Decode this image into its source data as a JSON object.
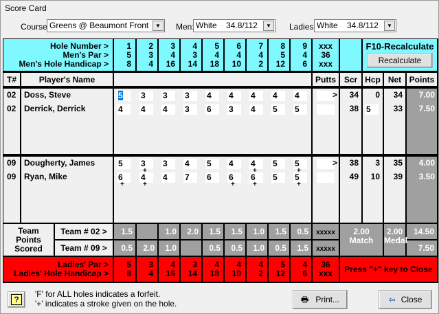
{
  "window": {
    "title": "Score Card"
  },
  "selectors": {
    "course_label": "Course:",
    "course_value": "Greens @ Beaumont Front",
    "men_label": "Men:",
    "men_value": "White    34.8/112",
    "ladies_label": "Ladies:",
    "ladies_value": "White    34.8/112"
  },
  "header": {
    "hole_number_label": "Hole Number >",
    "mens_par_label": "Men's Par >",
    "mens_hcp_label": "Men's Hole Handicap >",
    "holes": [
      "1",
      "2",
      "3",
      "4",
      "5",
      "6",
      "7",
      "8",
      "9"
    ],
    "mens_par": [
      "5",
      "3",
      "4",
      "3",
      "4",
      "4",
      "4",
      "5",
      "4"
    ],
    "mens_hcp": [
      "8",
      "4",
      "16",
      "14",
      "18",
      "10",
      "2",
      "12",
      "6"
    ],
    "total_hole": "xxx",
    "total_par": "36",
    "total_hcp": "xxx",
    "f10_label": "F10-Recalculate",
    "recalc_button": "Recalculate"
  },
  "columns": {
    "tee": "T#",
    "name": "Player's Name",
    "putts": "Putts",
    "scr": "Scr",
    "hcp": "Hcp",
    "net": "Net",
    "points": "Points"
  },
  "players": [
    {
      "tee": "02",
      "name": "Doss, Steve",
      "scores": [
        "5",
        "3",
        "3",
        "3",
        "4",
        "4",
        "4",
        "4",
        "4"
      ],
      "strokes": [
        0,
        0,
        0,
        0,
        0,
        0,
        0,
        0,
        0
      ],
      "putts_arrow": ">",
      "scr": "34",
      "hcp": "0",
      "net": "34",
      "points": "7.00"
    },
    {
      "tee": "02",
      "name": "Derrick, Derrick",
      "scores": [
        "4",
        "4",
        "4",
        "3",
        "6",
        "3",
        "4",
        "5",
        "5"
      ],
      "strokes": [
        0,
        0,
        0,
        0,
        0,
        0,
        0,
        0,
        0
      ],
      "putts_arrow": "",
      "scr": "38",
      "hcp": "5",
      "net": "33",
      "points": "7.50"
    },
    {
      "tee": "09",
      "name": "Dougherty, James",
      "scores": [
        "5",
        "3",
        "3",
        "4",
        "5",
        "4",
        "4",
        "5",
        "5"
      ],
      "strokes": [
        0,
        1,
        0,
        0,
        0,
        0,
        1,
        0,
        1
      ],
      "putts_arrow": ">",
      "scr": "38",
      "hcp": "3",
      "net": "35",
      "points": "4.00"
    },
    {
      "tee": "09",
      "name": "Ryan, Mike",
      "scores": [
        "6",
        "4",
        "4",
        "7",
        "6",
        "6",
        "6",
        "5",
        "5"
      ],
      "strokes": [
        1,
        1,
        0,
        0,
        0,
        1,
        1,
        0,
        1
      ],
      "putts_arrow": "",
      "scr": "49",
      "hcp": "10",
      "net": "39",
      "points": "3.50"
    }
  ],
  "stroke_mark": "+",
  "team_points": {
    "label": "Team Points Scored",
    "teams": [
      {
        "label": "Team # 02 >",
        "holes": [
          "1.5",
          "",
          "1.0",
          "2.0",
          "1.5",
          "1.5",
          "1.0",
          "1.5",
          "0.5"
        ],
        "total": "xxxxx",
        "points": "14.50"
      },
      {
        "label": "Team # 09 >",
        "holes": [
          "0.5",
          "2.0",
          "1.0",
          "",
          "0.5",
          "0.5",
          "1.0",
          "0.5",
          "1.5"
        ],
        "total": "xxxxx",
        "points": "7.50"
      }
    ],
    "match_value": "2.00",
    "match_label": "Match",
    "medal_value": "2.00",
    "medal_label": "Medal"
  },
  "ladies": {
    "par_label": "Ladies' Par >",
    "hcp_label": "Ladies' Hole Handicap >",
    "par": [
      "5",
      "3",
      "4",
      "3",
      "4",
      "4",
      "4",
      "5",
      "4"
    ],
    "hcp": [
      "8",
      "4",
      "16",
      "14",
      "18",
      "10",
      "2",
      "12",
      "6"
    ],
    "total_par": "36",
    "total_hcp": "xxx",
    "close_hint": "Press \"+\" key to Close"
  },
  "footer": {
    "note1": "'F' for ALL holes indicates a forfeit.",
    "note2": "'+' indicates a stroke given on the hole.",
    "print_button": "Print...",
    "close_button": "Close"
  },
  "colors": {
    "header": "#7ff8ff",
    "ladies": "#ff0000",
    "points": "#a0a0a0"
  }
}
